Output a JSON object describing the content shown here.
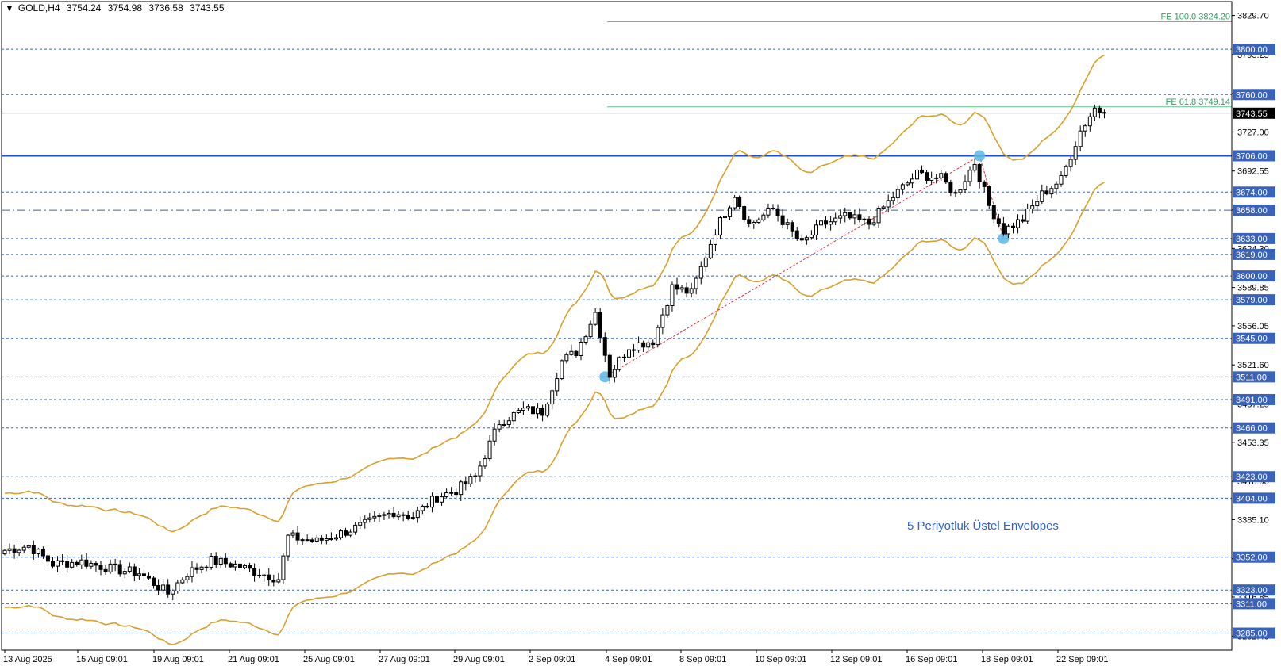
{
  "header": {
    "symbol": "GOLD,H4",
    "open": "3754.24",
    "high": "3754.98",
    "low": "3736.58",
    "close": "3743.55"
  },
  "annotation": "5 Periyotluk Üstel Envelopes",
  "colors": {
    "background": "#ffffff",
    "candle": "#000000",
    "envelope": "#d9a02b",
    "level_line": "#3a62b8",
    "main_line": "#1f4fc7",
    "fib_line": "#5fbf8a",
    "zigzag": "#e0303a",
    "marker": "#5bb7e6"
  },
  "chart_data": {
    "type": "candlestick",
    "title": "",
    "xlabel": "",
    "ylabel": "",
    "ylim": [
      3270,
      3842
    ],
    "price_axis_ticks": [
      "3829.70",
      "3795.25",
      "3760.85",
      "3727.00",
      "3692.55",
      "3658.15",
      "3624.30",
      "3589.85",
      "3556.05",
      "3521.60",
      "3487.25",
      "3453.35",
      "3418.90",
      "3385.10",
      "3350.65",
      "3316.85",
      "3282.40"
    ],
    "time_axis_ticks": [
      "13 Aug 2025",
      "15 Aug 09:01",
      "19 Aug 09:01",
      "21 Aug 09:01",
      "25 Aug 09:01",
      "27 Aug 09:01",
      "29 Aug 09:01",
      "2 Sep 09:01",
      "4 Sep 09:01",
      "8 Sep 09:01",
      "10 Sep 09:01",
      "12 Sep 09:01",
      "16 Sep 09:01",
      "18 Sep 09:01",
      "22 Sep 09:01"
    ],
    "horizontal_levels": [
      {
        "label": "3800.00",
        "value": 3800,
        "style": "dashed"
      },
      {
        "label": "3760.00",
        "value": 3760,
        "style": "dashed"
      },
      {
        "label": "3706.00",
        "value": 3706,
        "style": "solid"
      },
      {
        "label": "3674.00",
        "value": 3674,
        "style": "dashed"
      },
      {
        "label": "3658.00",
        "value": 3658,
        "style": "dashdot"
      },
      {
        "label": "3633.00",
        "value": 3633,
        "style": "dashed"
      },
      {
        "label": "3619.00",
        "value": 3619,
        "style": "dashed"
      },
      {
        "label": "3600.00",
        "value": 3600,
        "style": "dashed"
      },
      {
        "label": "3579.00",
        "value": 3579,
        "style": "dashed"
      },
      {
        "label": "3545.00",
        "value": 3545,
        "style": "dashed"
      },
      {
        "label": "3511.00",
        "value": 3511,
        "style": "dashed"
      },
      {
        "label": "3491.00",
        "value": 3491,
        "style": "dashed"
      },
      {
        "label": "3466.00",
        "value": 3466,
        "style": "dashed"
      },
      {
        "label": "3423.00",
        "value": 3423,
        "style": "dashed"
      },
      {
        "label": "3404.00",
        "value": 3404,
        "style": "dashed"
      },
      {
        "label": "3352.00",
        "value": 3352,
        "style": "dashed"
      },
      {
        "label": "3323.00",
        "value": 3323,
        "style": "dashed"
      },
      {
        "label": "3311.00",
        "value": 3311,
        "style": "dashed"
      },
      {
        "label": "3285.00",
        "value": 3285,
        "style": "dashed"
      }
    ],
    "current_price": {
      "label": "3743.55",
      "value": 3743.55
    },
    "fibonacci": [
      {
        "label": "FE 100.0 3824.20",
        "value": 3824.2
      },
      {
        "label": "FE 61.8 3749.14",
        "value": 3749.14
      }
    ],
    "zigzag_points": [
      {
        "bar": 125,
        "value": 3511
      },
      {
        "bar": 203,
        "value": 3706
      },
      {
        "bar": 208,
        "value": 3633
      }
    ],
    "waypoints": [
      {
        "bar": 0,
        "value": 3358
      },
      {
        "bar": 5,
        "value": 3362
      },
      {
        "bar": 10,
        "value": 3346
      },
      {
        "bar": 16,
        "value": 3348
      },
      {
        "bar": 22,
        "value": 3342
      },
      {
        "bar": 28,
        "value": 3338
      },
      {
        "bar": 34,
        "value": 3320
      },
      {
        "bar": 38,
        "value": 3338
      },
      {
        "bar": 43,
        "value": 3349
      },
      {
        "bar": 48,
        "value": 3345
      },
      {
        "bar": 53,
        "value": 3338
      },
      {
        "bar": 57,
        "value": 3333
      },
      {
        "bar": 59,
        "value": 3370
      },
      {
        "bar": 65,
        "value": 3366
      },
      {
        "bar": 70,
        "value": 3373
      },
      {
        "bar": 75,
        "value": 3381
      },
      {
        "bar": 81,
        "value": 3392
      },
      {
        "bar": 85,
        "value": 3388
      },
      {
        "bar": 90,
        "value": 3405
      },
      {
        "bar": 94,
        "value": 3411
      },
      {
        "bar": 98,
        "value": 3423
      },
      {
        "bar": 103,
        "value": 3471
      },
      {
        "bar": 108,
        "value": 3482
      },
      {
        "bar": 112,
        "value": 3480
      },
      {
        "bar": 116,
        "value": 3525
      },
      {
        "bar": 119,
        "value": 3533
      },
      {
        "bar": 123,
        "value": 3568
      },
      {
        "bar": 126,
        "value": 3513
      },
      {
        "bar": 130,
        "value": 3538
      },
      {
        "bar": 135,
        "value": 3543
      },
      {
        "bar": 139,
        "value": 3590
      },
      {
        "bar": 143,
        "value": 3585
      },
      {
        "bar": 148,
        "value": 3640
      },
      {
        "bar": 152,
        "value": 3672
      },
      {
        "bar": 155,
        "value": 3645
      },
      {
        "bar": 160,
        "value": 3659
      },
      {
        "bar": 166,
        "value": 3628
      },
      {
        "bar": 170,
        "value": 3645
      },
      {
        "bar": 175,
        "value": 3652
      },
      {
        "bar": 180,
        "value": 3646
      },
      {
        "bar": 185,
        "value": 3670
      },
      {
        "bar": 190,
        "value": 3690
      },
      {
        "bar": 195,
        "value": 3686
      },
      {
        "bar": 198,
        "value": 3672
      },
      {
        "bar": 202,
        "value": 3700
      },
      {
        "bar": 205,
        "value": 3662
      },
      {
        "bar": 208,
        "value": 3640
      },
      {
        "bar": 212,
        "value": 3650
      },
      {
        "bar": 216,
        "value": 3672
      },
      {
        "bar": 220,
        "value": 3685
      },
      {
        "bar": 224,
        "value": 3728
      },
      {
        "bar": 227,
        "value": 3748
      },
      {
        "bar": 229,
        "value": 3743.55
      }
    ],
    "envelope_offset_pct": 1.5
  }
}
